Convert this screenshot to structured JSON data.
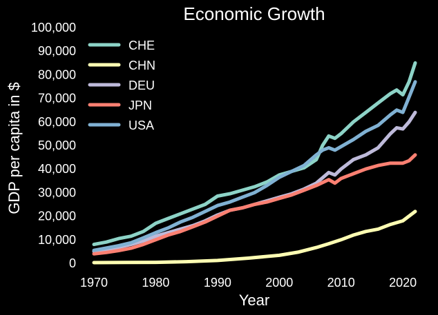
{
  "chart_data": {
    "type": "line",
    "title": "Economic Growth",
    "xlabel": "Year",
    "ylabel": "GDP per capita in $",
    "xlim": [
      1970,
      2022
    ],
    "ylim": [
      0,
      100000
    ],
    "xticks": [
      1970,
      1980,
      1990,
      2000,
      2010,
      2020
    ],
    "xtick_labels": [
      "1970",
      "1980",
      "1990",
      "2000",
      "2010",
      "2020"
    ],
    "yticks": [
      0,
      10000,
      20000,
      30000,
      40000,
      50000,
      60000,
      70000,
      80000,
      90000,
      100000
    ],
    "ytick_labels": [
      "0",
      "10,000",
      "20,000",
      "30,000",
      "40,000",
      "50,000",
      "60,000",
      "70,000",
      "80,000",
      "90,000",
      "100,000"
    ],
    "grid": false,
    "legend_position": "top-left",
    "series": [
      {
        "name": "CHE",
        "color": "#8dd3c7",
        "x": [
          1970,
          1972,
          1974,
          1976,
          1978,
          1980,
          1982,
          1984,
          1986,
          1988,
          1990,
          1992,
          1994,
          1996,
          1998,
          2000,
          2002,
          2004,
          2006,
          2007,
          2008,
          2009,
          2010,
          2012,
          2014,
          2016,
          2018,
          2019,
          2020,
          2021,
          2022
        ],
        "y": [
          8000,
          9000,
          10500,
          11500,
          13500,
          17000,
          19000,
          21000,
          23000,
          25000,
          28500,
          29500,
          31000,
          32500,
          34500,
          37500,
          39000,
          40500,
          44000,
          50000,
          54000,
          53000,
          55000,
          60000,
          64000,
          68000,
          72000,
          73500,
          71500,
          77000,
          85000
        ]
      },
      {
        "name": "CHN",
        "color": "#ffffb3",
        "x": [
          1970,
          1975,
          1980,
          1985,
          1990,
          1995,
          2000,
          2003,
          2006,
          2008,
          2010,
          2012,
          2014,
          2016,
          2018,
          2020,
          2022
        ],
        "y": [
          300,
          350,
          400,
          700,
          1200,
          2200,
          3400,
          4700,
          6700,
          8300,
          10000,
          12000,
          13500,
          14500,
          16500,
          18000,
          22000
        ]
      },
      {
        "name": "DEU",
        "color": "#bebada",
        "x": [
          1970,
          1972,
          1974,
          1976,
          1978,
          1980,
          1982,
          1984,
          1986,
          1988,
          1990,
          1992,
          1994,
          1996,
          1998,
          2000,
          2002,
          2004,
          2006,
          2008,
          2009,
          2010,
          2012,
          2014,
          2016,
          2018,
          2019,
          2020,
          2021,
          2022
        ],
        "y": [
          5000,
          5800,
          6800,
          8000,
          9500,
          11500,
          13000,
          14500,
          16000,
          18000,
          20500,
          22500,
          23500,
          25000,
          26500,
          28000,
          29500,
          31500,
          34000,
          38500,
          37500,
          40000,
          44000,
          46000,
          49000,
          55000,
          57500,
          57000,
          60000,
          64000
        ]
      },
      {
        "name": "JPN",
        "color": "#fb8072",
        "x": [
          1970,
          1972,
          1974,
          1976,
          1978,
          1980,
          1982,
          1984,
          1986,
          1988,
          1990,
          1992,
          1994,
          1996,
          1998,
          2000,
          2002,
          2004,
          2006,
          2008,
          2009,
          2010,
          2012,
          2014,
          2016,
          2018,
          2020,
          2021,
          2022
        ],
        "y": [
          4000,
          4600,
          5400,
          6400,
          8000,
          10000,
          12000,
          13500,
          15500,
          17500,
          20000,
          22500,
          23500,
          25000,
          26000,
          27500,
          29000,
          31000,
          33000,
          35500,
          34000,
          36000,
          38000,
          40000,
          41500,
          42500,
          42500,
          43500,
          46000
        ]
      },
      {
        "name": "USA",
        "color": "#80b1d3",
        "x": [
          1970,
          1972,
          1974,
          1976,
          1978,
          1980,
          1982,
          1984,
          1986,
          1988,
          1990,
          1992,
          1994,
          1996,
          1998,
          2000,
          2002,
          2004,
          2006,
          2007,
          2008,
          2009,
          2010,
          2012,
          2014,
          2016,
          2018,
          2019,
          2020,
          2021,
          2022
        ],
        "y": [
          5500,
          6500,
          7500,
          8700,
          10800,
          13000,
          15000,
          17500,
          19500,
          22000,
          24500,
          26000,
          28000,
          30000,
          33000,
          36500,
          39000,
          41500,
          46000,
          48000,
          49000,
          48000,
          49500,
          52500,
          56000,
          58500,
          63000,
          65000,
          64000,
          70500,
          77000
        ]
      }
    ]
  }
}
